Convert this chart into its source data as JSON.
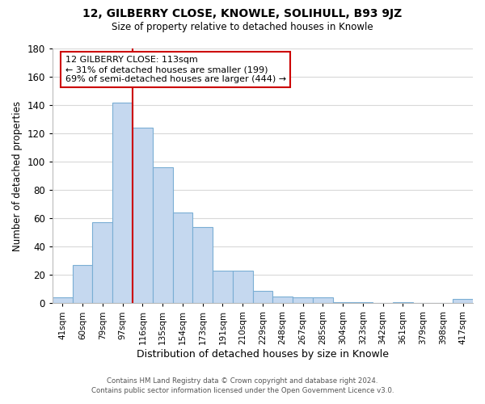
{
  "title": "12, GILBERRY CLOSE, KNOWLE, SOLIHULL, B93 9JZ",
  "subtitle": "Size of property relative to detached houses in Knowle",
  "xlabel": "Distribution of detached houses by size in Knowle",
  "ylabel": "Number of detached properties",
  "bar_labels": [
    "41sqm",
    "60sqm",
    "79sqm",
    "97sqm",
    "116sqm",
    "135sqm",
    "154sqm",
    "173sqm",
    "191sqm",
    "210sqm",
    "229sqm",
    "248sqm",
    "267sqm",
    "285sqm",
    "304sqm",
    "323sqm",
    "342sqm",
    "361sqm",
    "379sqm",
    "398sqm",
    "417sqm"
  ],
  "bar_values": [
    4,
    27,
    57,
    142,
    124,
    96,
    64,
    54,
    23,
    23,
    9,
    5,
    4,
    4,
    1,
    1,
    0,
    1,
    0,
    0,
    3
  ],
  "bar_color": "#c5d8ef",
  "bar_edge_color": "#7aaed4",
  "vline_color": "#cc0000",
  "annotation_title": "12 GILBERRY CLOSE: 113sqm",
  "annotation_line1": "← 31% of detached houses are smaller (199)",
  "annotation_line2": "69% of semi-detached houses are larger (444) →",
  "annotation_box_color": "#ffffff",
  "annotation_box_edge": "#cc0000",
  "ylim": [
    0,
    180
  ],
  "yticks": [
    0,
    20,
    40,
    60,
    80,
    100,
    120,
    140,
    160,
    180
  ],
  "footer1": "Contains HM Land Registry data © Crown copyright and database right 2024.",
  "footer2": "Contains public sector information licensed under the Open Government Licence v3.0.",
  "bg_color": "#ffffff",
  "grid_color": "#d8d8d8"
}
